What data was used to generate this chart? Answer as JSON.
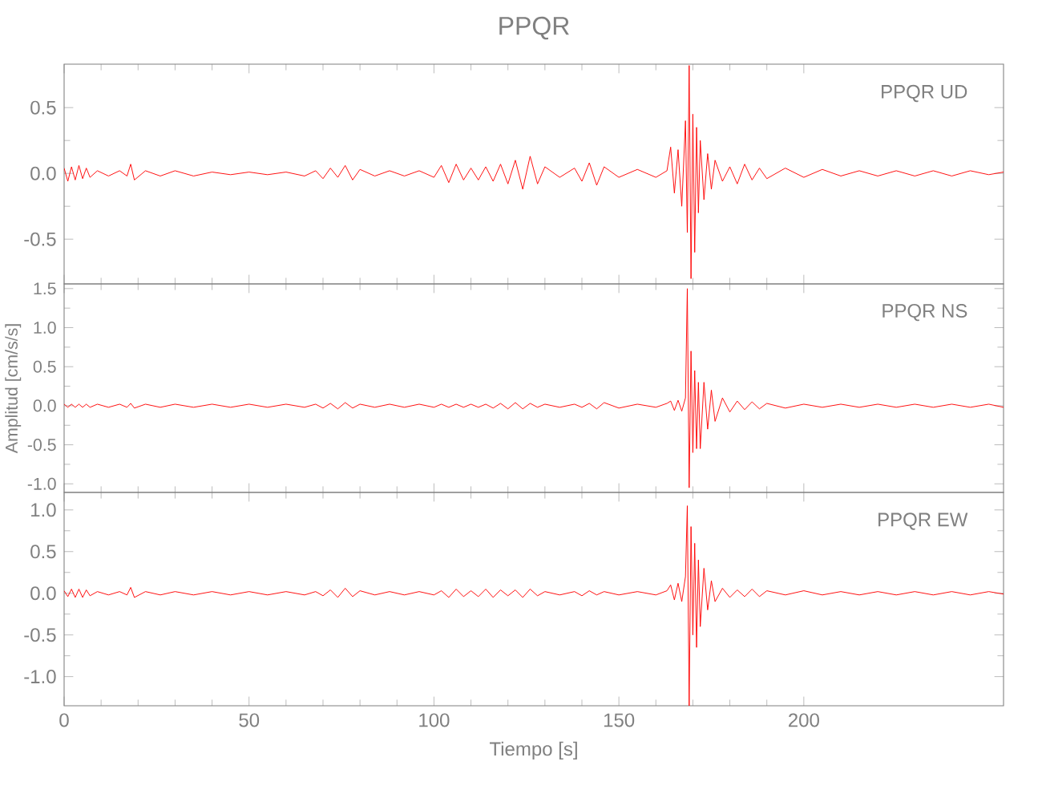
{
  "chart_data": [
    {
      "type": "line",
      "title": "PPQR",
      "annotations": [
        "PPQR UD"
      ],
      "color": "#ff0000",
      "xlim": [
        0,
        254
      ],
      "xticks": [
        0,
        50,
        100,
        150,
        200
      ],
      "ylim": [
        -0.84,
        0.83
      ],
      "yticks": [
        -0.5,
        {
          "value": 0,
          "label": "0.0"
        },
        0.5
      ],
      "tick_labels": "y",
      "x": [
        0,
        1,
        2,
        3,
        4,
        5,
        6,
        7,
        9,
        12,
        15,
        17,
        18,
        19,
        22,
        26,
        30,
        35,
        40,
        45,
        50,
        55,
        60,
        65,
        68,
        70,
        72,
        74,
        76,
        78,
        80,
        84,
        88,
        92,
        96,
        100,
        102,
        104,
        106,
        108,
        110,
        112,
        114,
        116,
        118,
        120,
        122,
        124,
        126,
        128,
        130,
        134,
        138,
        140,
        142,
        144,
        146,
        150,
        155,
        160,
        163,
        164,
        165,
        166,
        167,
        168,
        168.5,
        169,
        169.5,
        170,
        170.5,
        171,
        171.5,
        172,
        173,
        174,
        175,
        176,
        178,
        180,
        182,
        184,
        186,
        188,
        190,
        195,
        200,
        205,
        210,
        215,
        220,
        225,
        230,
        235,
        240,
        245,
        250,
        254
      ],
      "values": [
        0.04,
        -0.06,
        0.05,
        -0.05,
        0.06,
        -0.04,
        0.04,
        -0.03,
        0.02,
        -0.02,
        0.02,
        -0.02,
        0.07,
        -0.05,
        0.02,
        -0.02,
        0.02,
        -0.02,
        0.01,
        -0.01,
        0.01,
        -0.01,
        0.01,
        -0.02,
        0.02,
        -0.04,
        0.04,
        -0.03,
        0.06,
        -0.05,
        0.03,
        -0.02,
        0.02,
        -0.02,
        0.02,
        -0.03,
        0.06,
        -0.07,
        0.07,
        -0.05,
        0.04,
        -0.05,
        0.05,
        -0.06,
        0.07,
        -0.08,
        0.1,
        -0.12,
        0.13,
        -0.08,
        0.05,
        -0.03,
        0.04,
        -0.06,
        0.08,
        -0.09,
        0.05,
        -0.03,
        0.03,
        -0.03,
        0.02,
        0.2,
        -0.15,
        0.18,
        -0.25,
        0.4,
        -0.45,
        0.82,
        -0.8,
        0.45,
        -0.6,
        0.35,
        -0.3,
        0.25,
        -0.2,
        0.15,
        -0.12,
        0.1,
        -0.06,
        0.05,
        -0.08,
        0.07,
        -0.05,
        0.04,
        -0.04,
        0.04,
        -0.03,
        0.03,
        -0.02,
        0.02,
        -0.02,
        0.02,
        -0.02,
        0.02,
        -0.02,
        0.02,
        -0.01,
        0.01
      ]
    },
    {
      "type": "line",
      "ylabel": "Amplitud [cm/s/s]",
      "annotations": [
        "PPQR NS"
      ],
      "color": "#ff0000",
      "xlim": [
        0,
        254
      ],
      "xticks": [
        0,
        50,
        100,
        150,
        200
      ],
      "ylim": [
        -1.11,
        1.56
      ],
      "yticks": [
        {
          "value": -1,
          "label": "-1.0"
        },
        -0.5,
        {
          "value": 0,
          "label": "0.0"
        },
        0.5,
        {
          "value": 1,
          "label": "1.0"
        },
        1.5
      ],
      "tick_labels": "y",
      "x": [
        0,
        1,
        2,
        3,
        4,
        5,
        6,
        7,
        9,
        12,
        15,
        17,
        18,
        19,
        22,
        26,
        30,
        35,
        40,
        45,
        50,
        55,
        60,
        65,
        68,
        70,
        72,
        74,
        76,
        78,
        80,
        84,
        88,
        92,
        96,
        100,
        102,
        104,
        106,
        108,
        110,
        112,
        114,
        116,
        118,
        120,
        122,
        124,
        126,
        128,
        130,
        134,
        138,
        140,
        142,
        144,
        146,
        150,
        155,
        160,
        163,
        164,
        165,
        166,
        167,
        168,
        168.5,
        169,
        169.5,
        170,
        170.5,
        171,
        171.5,
        172,
        173,
        174,
        175,
        176,
        178,
        180,
        182,
        184,
        186,
        188,
        190,
        195,
        200,
        205,
        210,
        215,
        220,
        225,
        230,
        235,
        240,
        245,
        250,
        254
      ],
      "values": [
        0.02,
        -0.02,
        0.02,
        -0.02,
        0.02,
        -0.02,
        0.02,
        -0.02,
        0.02,
        -0.02,
        0.02,
        -0.02,
        0.03,
        -0.03,
        0.02,
        -0.02,
        0.02,
        -0.02,
        0.02,
        -0.02,
        0.02,
        -0.02,
        0.02,
        -0.02,
        0.02,
        -0.03,
        0.03,
        -0.04,
        0.04,
        -0.03,
        0.02,
        -0.02,
        0.02,
        -0.02,
        0.02,
        -0.02,
        0.02,
        -0.02,
        0.02,
        -0.02,
        0.02,
        -0.02,
        0.02,
        -0.03,
        0.03,
        -0.04,
        0.04,
        -0.04,
        0.03,
        -0.02,
        0.02,
        -0.02,
        0.02,
        -0.02,
        0.03,
        -0.04,
        0.04,
        -0.03,
        0.02,
        -0.02,
        0.03,
        0.06,
        -0.06,
        0.07,
        -0.07,
        0.1,
        1.5,
        -1.05,
        0.7,
        -0.6,
        0.45,
        -0.55,
        0.3,
        -0.55,
        0.3,
        -0.3,
        0.2,
        -0.2,
        0.1,
        -0.08,
        0.06,
        -0.05,
        0.05,
        -0.04,
        0.03,
        -0.03,
        0.02,
        -0.02,
        0.02,
        -0.02,
        0.02,
        -0.02,
        0.02,
        -0.02,
        0.02,
        -0.02,
        0.02,
        -0.02
      ]
    },
    {
      "type": "line",
      "xlabel": "Tiempo [s]",
      "annotations": [
        "PPQR EW"
      ],
      "color": "#ff0000",
      "xlim": [
        0,
        254
      ],
      "xticks": [
        0,
        50,
        100,
        150,
        200
      ],
      "ylim": [
        -1.35,
        1.21
      ],
      "yticks": [
        {
          "value": -1,
          "label": "-1.0"
        },
        -0.5,
        {
          "value": 0,
          "label": "0.0"
        },
        0.5,
        {
          "value": 1,
          "label": "1.0"
        }
      ],
      "x": [
        0,
        1,
        2,
        3,
        4,
        5,
        6,
        7,
        9,
        12,
        15,
        17,
        18,
        19,
        22,
        26,
        30,
        35,
        40,
        45,
        50,
        55,
        60,
        65,
        68,
        70,
        72,
        74,
        76,
        78,
        80,
        84,
        88,
        92,
        96,
        100,
        102,
        104,
        106,
        108,
        110,
        112,
        114,
        116,
        118,
        120,
        122,
        124,
        126,
        128,
        130,
        134,
        138,
        140,
        142,
        144,
        146,
        150,
        155,
        160,
        163,
        164,
        165,
        166,
        167,
        168,
        168.5,
        169,
        169.5,
        170,
        170.5,
        171,
        171.5,
        172,
        173,
        174,
        175,
        176,
        178,
        180,
        182,
        184,
        186,
        188,
        190,
        195,
        200,
        205,
        210,
        215,
        220,
        225,
        230,
        235,
        240,
        245,
        250,
        254
      ],
      "values": [
        0.03,
        -0.04,
        0.05,
        -0.05,
        0.05,
        -0.05,
        0.04,
        -0.03,
        0.02,
        -0.02,
        0.02,
        -0.02,
        0.07,
        -0.05,
        0.02,
        -0.02,
        0.02,
        -0.02,
        0.02,
        -0.02,
        0.02,
        -0.02,
        0.02,
        -0.02,
        0.02,
        -0.03,
        0.04,
        -0.05,
        0.06,
        -0.04,
        0.03,
        -0.02,
        0.02,
        -0.02,
        0.02,
        -0.02,
        0.03,
        -0.05,
        0.05,
        -0.04,
        0.03,
        -0.04,
        0.05,
        -0.05,
        0.04,
        -0.03,
        0.04,
        -0.05,
        0.05,
        -0.03,
        0.02,
        -0.02,
        0.02,
        -0.03,
        0.03,
        -0.02,
        0.02,
        -0.02,
        0.02,
        -0.02,
        0.03,
        0.1,
        -0.08,
        0.12,
        -0.1,
        0.2,
        1.05,
        -1.35,
        0.8,
        -0.5,
        0.6,
        -0.65,
        0.4,
        -0.4,
        0.3,
        -0.2,
        0.15,
        -0.1,
        0.06,
        -0.05,
        0.04,
        -0.04,
        0.05,
        -0.04,
        0.03,
        -0.02,
        0.03,
        -0.02,
        0.02,
        -0.02,
        0.02,
        -0.02,
        0.02,
        -0.02,
        0.02,
        -0.02,
        0.02,
        -0.01
      ]
    }
  ]
}
